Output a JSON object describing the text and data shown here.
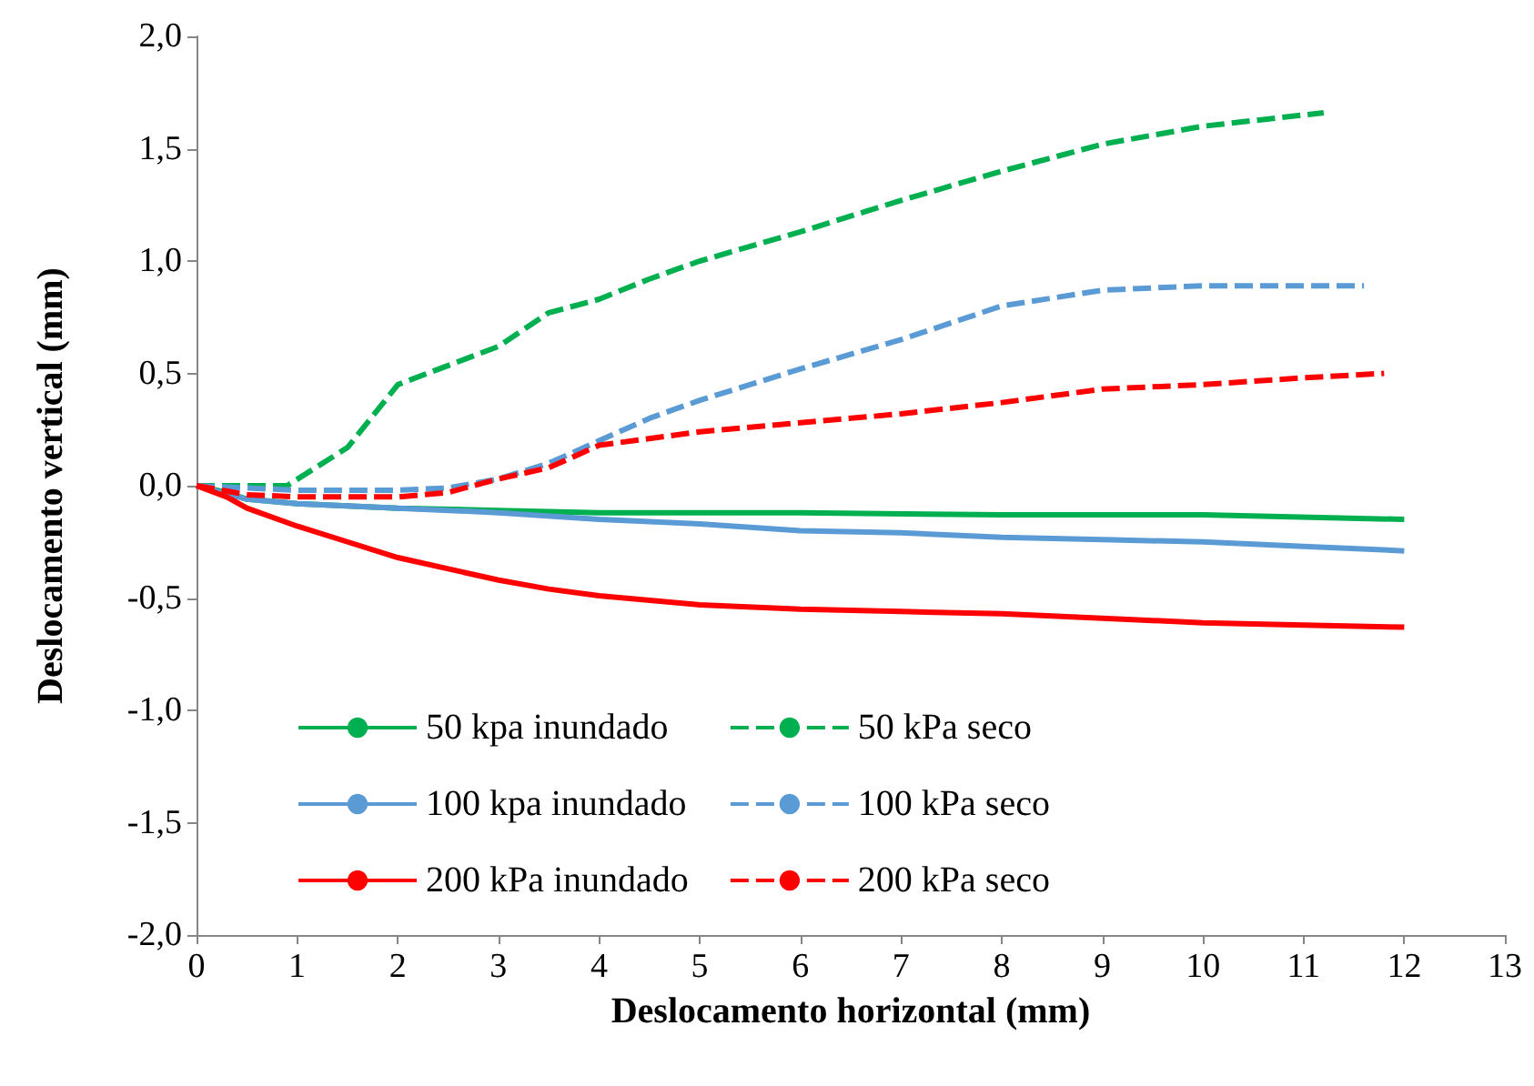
{
  "chart_data": {
    "type": "line",
    "xlabel": "Deslocamento horizontal (mm)",
    "ylabel": "Deslocamento vertical (mm)",
    "xlim": [
      0,
      13
    ],
    "xticks": [
      0,
      1,
      2,
      3,
      4,
      5,
      6,
      7,
      8,
      9,
      10,
      11,
      12,
      13
    ],
    "ylim": [
      -2,
      2
    ],
    "yticks": [
      {
        "value": -2,
        "label": "-2,0"
      },
      {
        "value": -1.5,
        "label": "-1,5"
      },
      {
        "value": -1,
        "label": "-1,0"
      },
      {
        "value": -0.5,
        "label": "-0,5"
      },
      {
        "value": 0,
        "label": "0,0"
      },
      {
        "value": 0.5,
        "label": "0,5"
      },
      {
        "value": 1,
        "label": "1,0"
      },
      {
        "value": 1.5,
        "label": "1,5"
      },
      {
        "value": 2,
        "label": "2,0"
      }
    ],
    "grid": false,
    "legend": "bottom left",
    "marker": "none",
    "series": [
      {
        "name": "50 kpa inundado",
        "color": "#00b050",
        "line_style": "solid",
        "x": [
          0,
          0.3,
          0.5,
          1,
          2,
          3,
          4,
          6,
          8,
          10,
          12
        ],
        "values": [
          0,
          -0.03,
          -0.06,
          -0.08,
          -0.1,
          -0.11,
          -0.12,
          -0.12,
          -0.13,
          -0.13,
          -0.15
        ]
      },
      {
        "name": "100 kpa inundado",
        "color": "#5b9bd5",
        "line_style": "solid",
        "x": [
          0,
          0.5,
          1,
          2,
          3,
          4,
          5,
          6,
          7,
          8,
          9,
          10,
          11,
          12
        ],
        "values": [
          0,
          -0.06,
          -0.08,
          -0.1,
          -0.12,
          -0.15,
          -0.17,
          -0.2,
          -0.21,
          -0.23,
          -0.24,
          -0.25,
          -0.27,
          -0.29
        ]
      },
      {
        "name": "200 kPa inundado",
        "color": "#ff0000",
        "line_style": "solid",
        "x": [
          0,
          0.3,
          0.5,
          1,
          1.5,
          2,
          2.5,
          3,
          3.5,
          4,
          5,
          6,
          7,
          8,
          9,
          10,
          11,
          12
        ],
        "values": [
          0,
          -0.05,
          -0.1,
          -0.18,
          -0.25,
          -0.32,
          -0.37,
          -0.42,
          -0.46,
          -0.49,
          -0.53,
          -0.55,
          -0.56,
          -0.57,
          -0.59,
          -0.61,
          -0.62,
          -0.63
        ]
      },
      {
        "name": "50 kPa seco",
        "color": "#00b050",
        "line_style": "dashed",
        "x": [
          0,
          0.9,
          1.5,
          2,
          3,
          3.5,
          4,
          4.5,
          5,
          6,
          7,
          8,
          9,
          10,
          11.2
        ],
        "values": [
          0,
          0,
          0.17,
          0.45,
          0.62,
          0.77,
          0.83,
          0.92,
          1.0,
          1.13,
          1.27,
          1.4,
          1.52,
          1.6,
          1.66
        ]
      },
      {
        "name": "100 kPa seco",
        "color": "#5b9bd5",
        "line_style": "dashed",
        "x": [
          0,
          0.5,
          1,
          2,
          2.5,
          3,
          3.5,
          4,
          4.5,
          5,
          6,
          7,
          8,
          9,
          10,
          11.6
        ],
        "values": [
          0,
          -0.01,
          -0.02,
          -0.02,
          -0.01,
          0.03,
          0.1,
          0.2,
          0.3,
          0.38,
          0.52,
          0.65,
          0.8,
          0.87,
          0.89,
          0.89
        ]
      },
      {
        "name": "200 kPa seco",
        "color": "#ff0000",
        "line_style": "dashed",
        "x": [
          0,
          0.5,
          1,
          2,
          2.5,
          3,
          3.5,
          4,
          5,
          6,
          7,
          8,
          9,
          10,
          11,
          11.8
        ],
        "values": [
          0,
          -0.04,
          -0.05,
          -0.05,
          -0.03,
          0.03,
          0.08,
          0.18,
          0.24,
          0.28,
          0.32,
          0.37,
          0.43,
          0.45,
          0.48,
          0.5
        ]
      }
    ]
  }
}
